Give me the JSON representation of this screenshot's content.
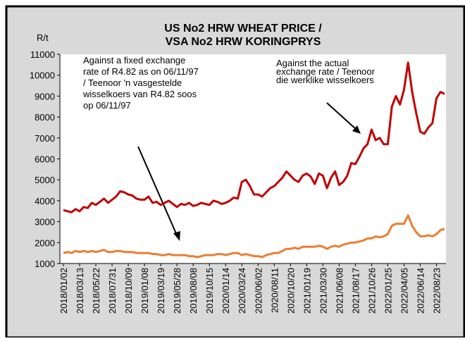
{
  "chart_data": {
    "type": "line",
    "title": [
      "US No2 HRW WHEAT PRICE /",
      "VSA No2 HRW KORINGPRYS"
    ],
    "y_label": "R/t",
    "annotations": [
      {
        "lines": [
          "Against a fixed  exchange",
          "rate of R4.82 as on 06/11/97",
          "/ Teenoor 'n vasgestelde",
          "wisselkoers van R4.82 soos",
          "op 06/11/97"
        ]
      },
      {
        "lines": [
          "Against the actual",
          "exchange rate / Teenoor",
          "die werklike wisselkoers"
        ]
      }
    ],
    "categories": [
      "2018/01/02",
      null,
      null,
      null,
      "2018/03/13",
      null,
      null,
      null,
      "2018/05/22",
      null,
      null,
      null,
      "2018/07/31",
      null,
      null,
      null,
      "2018/10/09",
      null,
      null,
      null,
      "2019/01/08",
      null,
      null,
      null,
      "2019/03/19",
      null,
      null,
      null,
      "2019/05/28",
      null,
      null,
      null,
      "2019/08/08",
      null,
      null,
      null,
      "2019/10/15",
      null,
      null,
      null,
      "2020/01/14",
      null,
      null,
      null,
      "2020/03/24",
      null,
      null,
      null,
      "2020/06/02",
      null,
      null,
      null,
      "2020/08/11",
      null,
      null,
      null,
      "2020/10/20",
      null,
      null,
      null,
      "2021/01/19",
      null,
      null,
      null,
      "2021/03/30",
      null,
      null,
      null,
      "2021/06/08",
      null,
      null,
      null,
      "2021/08/17",
      null,
      null,
      null,
      "2021/10/26",
      null,
      null,
      null,
      "2022/01/25",
      null,
      null,
      null,
      "2022/04/05",
      null,
      null,
      null,
      "2022/06/14",
      null,
      null,
      null,
      "2022/08/23",
      null,
      null
    ],
    "series": [
      {
        "name": "Against the actual exchange rate",
        "color": "#c00000",
        "values": [
          3550,
          3500,
          3450,
          3600,
          3500,
          3700,
          3650,
          3900,
          3800,
          3950,
          4100,
          3900,
          4050,
          4200,
          4450,
          4400,
          4300,
          4250,
          4100,
          4050,
          4050,
          4200,
          3900,
          3950,
          3800,
          3900,
          4000,
          3850,
          3700,
          3850,
          3800,
          3900,
          3750,
          3800,
          3900,
          3850,
          3800,
          4000,
          3950,
          3850,
          3900,
          4000,
          4150,
          4100,
          4900,
          5000,
          4700,
          4300,
          4300,
          4200,
          4400,
          4600,
          4700,
          4900,
          5100,
          5400,
          5200,
          5000,
          4900,
          5200,
          5300,
          5150,
          4800,
          5300,
          5200,
          4600,
          5100,
          5400,
          4750,
          4900,
          5200,
          5800,
          5750,
          6100,
          6500,
          6700,
          7400,
          6900,
          7000,
          6700,
          6700,
          8500,
          9000,
          8600,
          9300,
          10600,
          9200,
          8200,
          7300,
          7200,
          7500,
          7700,
          8900,
          9200,
          9100
        ]
      },
      {
        "name": "Against a fixed exchange rate",
        "color": "#ed7d31",
        "values": [
          1500,
          1550,
          1500,
          1600,
          1550,
          1600,
          1550,
          1600,
          1550,
          1600,
          1650,
          1550,
          1550,
          1600,
          1600,
          1550,
          1550,
          1550,
          1500,
          1500,
          1500,
          1500,
          1450,
          1450,
          1400,
          1400,
          1450,
          1400,
          1400,
          1400,
          1400,
          1350,
          1350,
          1300,
          1350,
          1400,
          1400,
          1400,
          1450,
          1450,
          1400,
          1450,
          1500,
          1500,
          1400,
          1450,
          1400,
          1350,
          1350,
          1300,
          1400,
          1450,
          1500,
          1500,
          1600,
          1700,
          1700,
          1750,
          1700,
          1800,
          1800,
          1800,
          1800,
          1850,
          1800,
          1700,
          1800,
          1850,
          1800,
          1900,
          1950,
          2000,
          2000,
          2050,
          2100,
          2200,
          2200,
          2300,
          2250,
          2300,
          2400,
          2800,
          2900,
          2900,
          2900,
          3300,
          2800,
          2500,
          2300,
          2300,
          2350,
          2300,
          2400,
          2600,
          2650
        ]
      }
    ],
    "ylim": [
      1000,
      11000
    ],
    "yticks": [
      1000,
      2000,
      3000,
      4000,
      5000,
      6000,
      7000,
      8000,
      9000,
      10000,
      11000
    ]
  }
}
